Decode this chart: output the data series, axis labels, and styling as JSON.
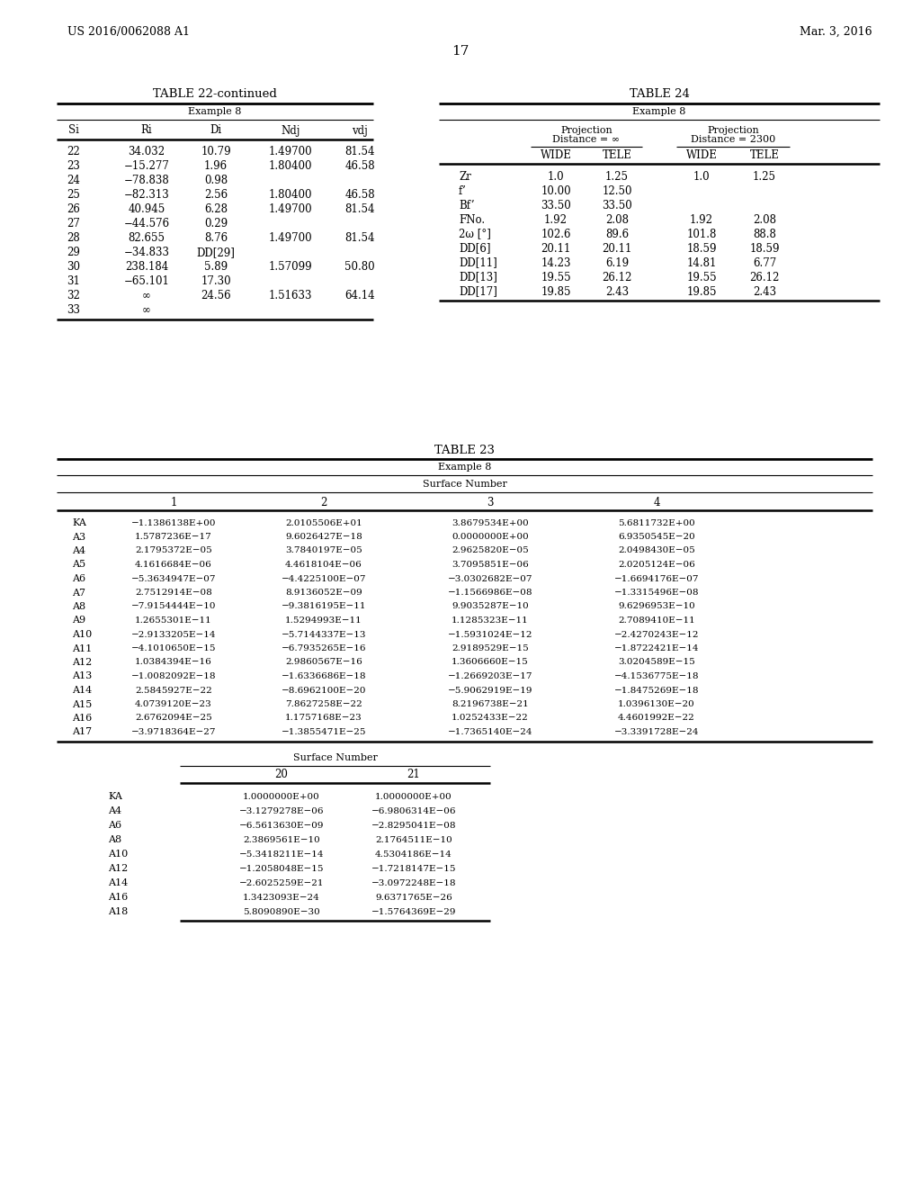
{
  "patent_number": "US 2016/0062088 A1",
  "patent_date": "Mar. 3, 2016",
  "page_number": "17",
  "background_color": "#ffffff",
  "table22_title": "TABLE 22-continued",
  "table22_subtitle": "Example 8",
  "table22_headers": [
    "Si",
    "Ri",
    "Di",
    "Ndj",
    "vdj"
  ],
  "table22_data": [
    [
      "22",
      "34.032",
      "10.79",
      "1.49700",
      "81.54"
    ],
    [
      "23",
      "−15.277",
      "1.96",
      "1.80400",
      "46.58"
    ],
    [
      "24",
      "−78.838",
      "0.98",
      "",
      ""
    ],
    [
      "25",
      "−82.313",
      "2.56",
      "1.80400",
      "46.58"
    ],
    [
      "26",
      "40.945",
      "6.28",
      "1.49700",
      "81.54"
    ],
    [
      "27",
      "−44.576",
      "0.29",
      "",
      ""
    ],
    [
      "28",
      "82.655",
      "8.76",
      "1.49700",
      "81.54"
    ],
    [
      "29",
      "−34.833",
      "DD[29]",
      "",
      ""
    ],
    [
      "30",
      "238.184",
      "5.89",
      "1.57099",
      "50.80"
    ],
    [
      "31",
      "−65.101",
      "17.30",
      "",
      ""
    ],
    [
      "32",
      "∞",
      "24.56",
      "1.51633",
      "64.14"
    ],
    [
      "33",
      "∞",
      "",
      "",
      ""
    ]
  ],
  "table24_title": "TABLE 24",
  "table24_subtitle": "Example 8",
  "table24_col_headers_2": [
    "WIDE",
    "TELE",
    "WIDE",
    "TELE"
  ],
  "table24_data": [
    [
      "Zr",
      "1.0",
      "1.25",
      "1.0",
      "1.25"
    ],
    [
      "f’",
      "10.00",
      "12.50",
      "",
      ""
    ],
    [
      "Bf’",
      "33.50",
      "33.50",
      "",
      ""
    ],
    [
      "FNo.",
      "1.92",
      "2.08",
      "1.92",
      "2.08"
    ],
    [
      "2ω [°]",
      "102.6",
      "89.6",
      "101.8",
      "88.8"
    ],
    [
      "DD[6]",
      "20.11",
      "20.11",
      "18.59",
      "18.59"
    ],
    [
      "DD[11]",
      "14.23",
      "6.19",
      "14.81",
      "6.77"
    ],
    [
      "DD[13]",
      "19.55",
      "26.12",
      "19.55",
      "26.12"
    ],
    [
      "DD[17]",
      "19.85",
      "2.43",
      "19.85",
      "2.43"
    ]
  ],
  "table23_title": "TABLE 23",
  "table23_subtitle": "Example 8",
  "table23_surface_header": "Surface Number",
  "table23_col_headers": [
    "1",
    "2",
    "3",
    "4"
  ],
  "table23_row_labels": [
    "KA",
    "A3",
    "A4",
    "A5",
    "A6",
    "A7",
    "A8",
    "A9",
    "A10",
    "A11",
    "A12",
    "A13",
    "A14",
    "A15",
    "A16",
    "A17"
  ],
  "table23_data": [
    [
      "−1.1386138E+00",
      "2.0105506E+01",
      "3.8679534E+00",
      "5.6811732E+00"
    ],
    [
      "1.5787236E−17",
      "9.6026427E−18",
      "0.0000000E+00",
      "6.9350545E−20"
    ],
    [
      "2.1795372E−05",
      "3.7840197E−05",
      "2.9625820E−05",
      "2.0498430E−05"
    ],
    [
      "4.1616684E−06",
      "4.4618104E−06",
      "3.7095851E−06",
      "2.0205124E−06"
    ],
    [
      "−5.3634947E−07",
      "−4.4225100E−07",
      "−3.0302682E−07",
      "−1.6694176E−07"
    ],
    [
      "2.7512914E−08",
      "8.9136052E−09",
      "−1.1566986E−08",
      "−1.3315496E−08"
    ],
    [
      "−7.9154444E−10",
      "−9.3816195E−11",
      "9.9035287E−10",
      "9.6296953E−10"
    ],
    [
      "1.2655301E−11",
      "1.5294993E−11",
      "1.1285323E−11",
      "2.7089410E−11"
    ],
    [
      "−2.9133205E−14",
      "−5.7144337E−13",
      "−1.5931024E−12",
      "−2.4270243E−12"
    ],
    [
      "−4.1010650E−15",
      "−6.7935265E−16",
      "2.9189529E−15",
      "−1.8722421E−14"
    ],
    [
      "1.0384394E−16",
      "2.9860567E−16",
      "1.3606660E−15",
      "3.0204589E−15"
    ],
    [
      "−1.0082092E−18",
      "−1.6336686E−18",
      "−1.2669203E−17",
      "−4.1536775E−18"
    ],
    [
      "2.5845927E−22",
      "−8.6962100E−20",
      "−5.9062919E−19",
      "−1.8475269E−18"
    ],
    [
      "4.0739120E−23",
      "7.8627258E−22",
      "8.2196738E−21",
      "1.0396130E−20"
    ],
    [
      "2.6762094E−25",
      "1.1757168E−23",
      "1.0252433E−22",
      "4.4601992E−22"
    ],
    [
      "−3.9718364E−27",
      "−1.3855471E−25",
      "−1.7365140E−24",
      "−3.3391728E−24"
    ]
  ],
  "table23_col_headers_b": [
    "20",
    "21"
  ],
  "table23_row_labels_b": [
    "KA",
    "A4",
    "A6",
    "A8",
    "A10",
    "A12",
    "A14",
    "A16",
    "A18"
  ],
  "table23_data_b": [
    [
      "1.0000000E+00",
      "1.0000000E+00"
    ],
    [
      "−3.1279278E−06",
      "−6.9806314E−06"
    ],
    [
      "−6.5613630E−09",
      "−2.8295041E−08"
    ],
    [
      "2.3869561E−10",
      "2.1764511E−10"
    ],
    [
      "−5.3418211E−14",
      "4.5304186E−14"
    ],
    [
      "−1.2058048E−15",
      "−1.7218147E−15"
    ],
    [
      "−2.6025259E−21",
      "−3.0972248E−18"
    ],
    [
      "1.3423093E−24",
      "9.6371765E−26"
    ],
    [
      "5.8090890E−30",
      "−1.5764369E−29"
    ]
  ]
}
